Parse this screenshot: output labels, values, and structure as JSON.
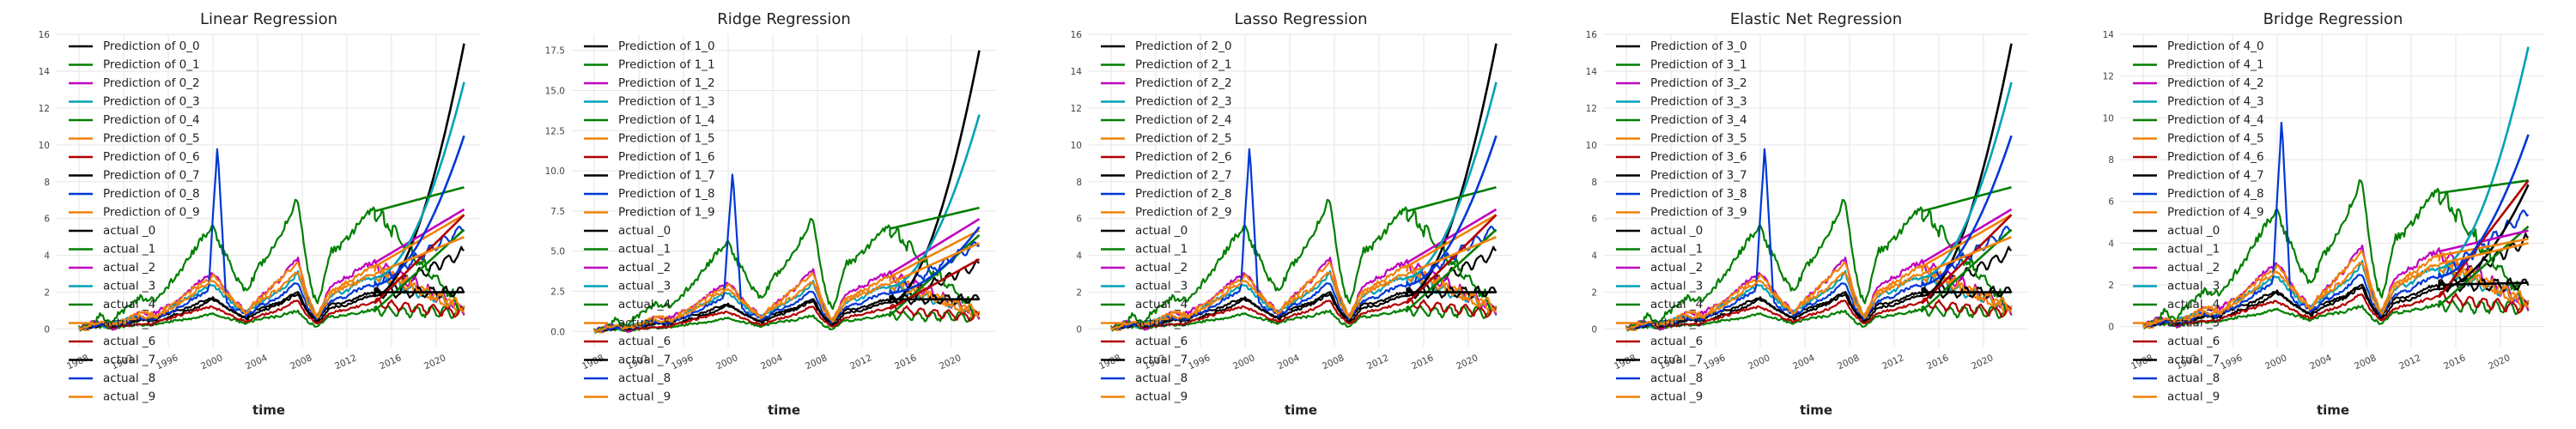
{
  "chart_data": [
    {
      "type": "line",
      "title": "Linear Regression",
      "xlabel": "time",
      "ylabel": "",
      "xlim": [
        1986,
        2024
      ],
      "ylim": [
        -1,
        16
      ],
      "xticks": [
        "1988",
        "1992",
        "1996",
        "2000",
        "2004",
        "2008",
        "2012",
        "2016",
        "2020"
      ],
      "yticks": [
        "0",
        "2",
        "4",
        "6",
        "8",
        "10",
        "12",
        "14",
        "16"
      ],
      "grid": true,
      "legend_position": "top-left",
      "prediction_start": 2014.5,
      "prediction_ends": [
        15.5,
        5.4,
        6.5,
        13.4,
        7.7,
        6.2,
        6.2,
        2.0,
        10.5,
        5.0
      ],
      "actual_ends": [
        4.2,
        0.9,
        1.0,
        1.2,
        1.0,
        0.9,
        0.9,
        2.0,
        5.5,
        1.2
      ]
    },
    {
      "type": "line",
      "title": "Ridge Regression",
      "xlabel": "time",
      "ylabel": "",
      "xlim": [
        1986,
        2024
      ],
      "ylim": [
        -1,
        18.5
      ],
      "xticks": [
        "1988",
        "1992",
        "1996",
        "2000",
        "2004",
        "2008",
        "2012",
        "2016",
        "2020"
      ],
      "yticks": [
        "0.0",
        "2.5",
        "5.0",
        "7.5",
        "10.0",
        "12.5",
        "15.0",
        "17.5"
      ],
      "grid": true,
      "legend_position": "top-left",
      "prediction_start": 2014.5,
      "prediction_ends": [
        17.5,
        6.0,
        7.0,
        13.5,
        7.7,
        6.3,
        4.5,
        2.0,
        6.5,
        5.5
      ],
      "actual_ends": [
        4.2,
        0.9,
        1.0,
        1.2,
        1.0,
        0.9,
        0.9,
        2.0,
        5.5,
        1.2
      ]
    },
    {
      "type": "line",
      "title": "Lasso Regression",
      "xlabel": "time",
      "ylabel": "",
      "xlim": [
        1986,
        2024
      ],
      "ylim": [
        -1,
        16
      ],
      "xticks": [
        "1988",
        "1992",
        "1996",
        "2000",
        "2004",
        "2008",
        "2012",
        "2016",
        "2020"
      ],
      "yticks": [
        "0",
        "2",
        "4",
        "6",
        "8",
        "10",
        "12",
        "14",
        "16"
      ],
      "grid": true,
      "legend_position": "top-left",
      "prediction_start": 2014.5,
      "prediction_ends": [
        15.5,
        5.4,
        6.5,
        13.4,
        7.7,
        6.2,
        6.2,
        2.0,
        10.5,
        5.0
      ],
      "actual_ends": [
        4.2,
        0.9,
        1.0,
        1.2,
        1.0,
        0.9,
        0.9,
        2.0,
        5.5,
        1.2
      ]
    },
    {
      "type": "line",
      "title": "Elastic Net Regression",
      "xlabel": "time",
      "ylabel": "",
      "xlim": [
        1986,
        2024
      ],
      "ylim": [
        -1,
        16
      ],
      "xticks": [
        "1988",
        "1992",
        "1996",
        "2000",
        "2004",
        "2008",
        "2012",
        "2016",
        "2020"
      ],
      "yticks": [
        "0",
        "2",
        "4",
        "6",
        "8",
        "10",
        "12",
        "14",
        "16"
      ],
      "grid": true,
      "legend_position": "top-left",
      "prediction_start": 2014.5,
      "prediction_ends": [
        15.5,
        5.4,
        6.5,
        13.4,
        7.7,
        6.2,
        6.2,
        2.0,
        10.5,
        5.0
      ],
      "actual_ends": [
        4.2,
        0.9,
        1.0,
        1.2,
        1.0,
        0.9,
        0.9,
        2.0,
        5.5,
        1.2
      ]
    },
    {
      "type": "line",
      "title": "Bridge Regression",
      "xlabel": "time",
      "ylabel": "",
      "xlim": [
        1986,
        2024
      ],
      "ylim": [
        -1,
        14
      ],
      "xticks": [
        "1988",
        "1992",
        "1996",
        "2000",
        "2004",
        "2008",
        "2012",
        "2016",
        "2020"
      ],
      "yticks": [
        "0",
        "2",
        "4",
        "6",
        "8",
        "10",
        "12",
        "14"
      ],
      "grid": true,
      "legend_position": "top-left",
      "prediction_start": 2014.5,
      "prediction_ends": [
        6.8,
        4.8,
        4.6,
        13.4,
        7.0,
        4.2,
        7.0,
        2.1,
        9.2,
        4.0
      ],
      "actual_ends": [
        4.2,
        0.9,
        1.0,
        1.2,
        1.0,
        0.9,
        0.9,
        2.0,
        5.5,
        1.2
      ]
    }
  ],
  "series_colors": [
    "#000000",
    "#007f00",
    "#bf00bf",
    "#00a2b8",
    "#007f00",
    "#f0820a",
    "#b20000",
    "#000000",
    "#0037d6",
    "#f0820a"
  ],
  "legend": {
    "charts": [
      {
        "prediction_labels": [
          "Prediction of 0_0",
          "Prediction of 0_1",
          "Prediction of 0_2",
          "Prediction of 0_3",
          "Prediction of 0_4",
          "Prediction of 0_5",
          "Prediction of 0_6",
          "Prediction of 0_7",
          "Prediction of 0_8",
          "Prediction of 0_9"
        ],
        "actual_labels": [
          "actual _0",
          "actual _1",
          "actual _2",
          "actual _3",
          "actual _4",
          "actual _5",
          "actual _6",
          "actual _7",
          "actual _8",
          "actual _9"
        ]
      },
      {
        "prediction_labels": [
          "Prediction of 1_0",
          "Prediction of 1_1",
          "Prediction of 1_2",
          "Prediction of 1_3",
          "Prediction of 1_4",
          "Prediction of 1_5",
          "Prediction of 1_6",
          "Prediction of 1_7",
          "Prediction of 1_8",
          "Prediction of 1_9"
        ],
        "actual_labels": [
          "actual _0",
          "actual _1",
          "actual _2",
          "actual _3",
          "actual _4",
          "actual _5",
          "actual _6",
          "actual _7",
          "actual _8",
          "actual _9"
        ]
      },
      {
        "prediction_labels": [
          "Prediction of 2_0",
          "Prediction of 2_1",
          "Prediction of 2_2",
          "Prediction of 2_3",
          "Prediction of 2_4",
          "Prediction of 2_5",
          "Prediction of 2_6",
          "Prediction of 2_7",
          "Prediction of 2_8",
          "Prediction of 2_9"
        ],
        "actual_labels": [
          "actual _0",
          "actual _1",
          "actual _2",
          "actual _3",
          "actual _4",
          "actual _5",
          "actual _6",
          "actual _7",
          "actual _8",
          "actual _9"
        ]
      },
      {
        "prediction_labels": [
          "Prediction of 3_0",
          "Prediction of 3_1",
          "Prediction of 3_2",
          "Prediction of 3_3",
          "Prediction of 3_4",
          "Prediction of 3_5",
          "Prediction of 3_6",
          "Prediction of 3_7",
          "Prediction of 3_8",
          "Prediction of 3_9"
        ],
        "actual_labels": [
          "actual _0",
          "actual _1",
          "actual _2",
          "actual _3",
          "actual _4",
          "actual _5",
          "actual _6",
          "actual _7",
          "actual _8",
          "actual _9"
        ]
      },
      {
        "prediction_labels": [
          "Prediction of 4_0",
          "Prediction of 4_1",
          "Prediction of 4_2",
          "Prediction of 4_3",
          "Prediction of 4_4",
          "Prediction of 4_5",
          "Prediction of 4_6",
          "Prediction of 4_7",
          "Prediction of 4_8",
          "Prediction of 4_9"
        ],
        "actual_labels": [
          "actual _0",
          "actual _1",
          "actual _2",
          "actual _3",
          "actual _4",
          "actual _5",
          "actual _6",
          "actual _7",
          "actual _8",
          "actual _9"
        ]
      }
    ]
  }
}
